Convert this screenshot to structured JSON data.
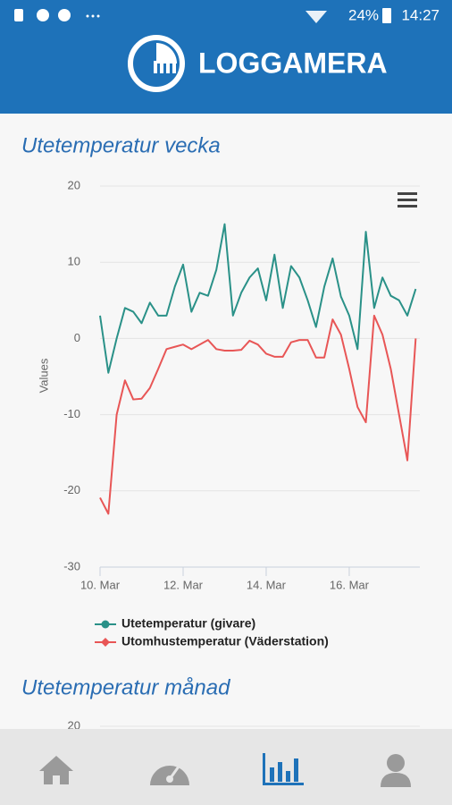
{
  "status_bar": {
    "battery": "24%",
    "time": "14:27"
  },
  "header": {
    "logo": "LOGGAMERA"
  },
  "chart_data": [
    {
      "type": "line",
      "title": "Utetemperatur vecka",
      "y_label": "Values",
      "x": [
        10.0,
        10.2,
        10.4,
        10.6,
        10.8,
        11.0,
        11.2,
        11.4,
        11.6,
        11.8,
        12.0,
        12.2,
        12.4,
        12.6,
        12.8,
        13.0,
        13.2,
        13.4,
        13.6,
        13.8,
        14.0,
        14.2,
        14.4,
        14.6,
        14.8,
        15.0,
        15.2,
        15.4,
        15.6,
        15.8,
        16.0,
        16.2,
        16.4,
        16.6,
        16.8,
        17.0,
        17.2,
        17.4,
        17.6
      ],
      "series": [
        {
          "name": "Utetemperatur (givare)",
          "color": "#2a9188",
          "values": [
            3,
            -4.5,
            0,
            4,
            3.5,
            2,
            4.7,
            3,
            3,
            6.8,
            9.7,
            3.5,
            6,
            5.6,
            9,
            15,
            3,
            6,
            8,
            9.2,
            5,
            11,
            4,
            9.5,
            8,
            5,
            1.5,
            6.8,
            10.5,
            5.5,
            3,
            -1.4,
            14,
            4,
            8,
            5.6,
            5,
            3,
            6.5
          ]
        },
        {
          "name": "Utomhustemperatur (Väderstation)",
          "color": "#e85656",
          "values": [
            -20.9,
            -23,
            -10,
            -5.5,
            -8,
            -7.9,
            -6.5,
            -4,
            -1.4,
            -1.1,
            -0.8,
            -1.4,
            -0.8,
            -0.2,
            -1.4,
            -1.6,
            -1.6,
            -1.5,
            -0.3,
            -0.8,
            -2,
            -2.4,
            -2.4,
            -0.5,
            -0.2,
            -0.2,
            -2.5,
            -2.5,
            2.5,
            0.5,
            -4,
            -9,
            -11,
            3,
            0.5,
            -4,
            -10,
            -16,
            0
          ]
        }
      ],
      "xlim": [
        10,
        17.7
      ],
      "xticks": [
        {
          "value": 10,
          "label": "10. Mar"
        },
        {
          "value": 12,
          "label": "12. Mar"
        },
        {
          "value": 14,
          "label": "14. Mar"
        },
        {
          "value": 16,
          "label": "16. Mar"
        }
      ],
      "ylim": [
        -30,
        20
      ],
      "yticks": [
        20,
        10,
        0,
        -10,
        -20,
        -30
      ],
      "grid": true
    },
    {
      "type": "line",
      "title": "Utetemperatur månad",
      "yticks": [
        20
      ],
      "grid": true
    }
  ]
}
